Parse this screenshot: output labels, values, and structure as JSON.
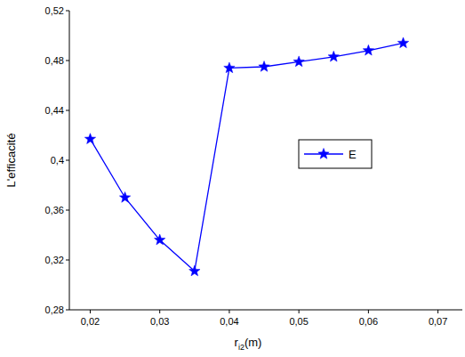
{
  "chart_data": {
    "type": "line",
    "x_label": "ri2(m)",
    "y_label": "L'efficacité",
    "x": [
      0.02,
      0.025,
      0.03,
      0.035,
      0.04,
      0.045,
      0.05,
      0.055,
      0.06,
      0.065
    ],
    "series": [
      {
        "name": "E",
        "color": "#0000ff",
        "marker": "star",
        "line_style": "solid",
        "values": [
          0.417,
          0.37,
          0.336,
          0.311,
          0.474,
          0.475,
          0.479,
          0.483,
          0.488,
          0.494
        ]
      }
    ],
    "xlim": [
      0.017,
      0.0735
    ],
    "xticks": [
      {
        "value": 0.02,
        "label": "0,02"
      },
      {
        "value": 0.03,
        "label": "0,03"
      },
      {
        "value": 0.04,
        "label": "0,04"
      },
      {
        "value": 0.05,
        "label": "0,05"
      },
      {
        "value": 0.06,
        "label": "0,06"
      },
      {
        "value": 0.07,
        "label": "0,07"
      }
    ],
    "ylim": [
      0.28,
      0.52
    ],
    "yticks": [
      {
        "value": 0.28,
        "label": "0,28"
      },
      {
        "value": 0.32,
        "label": "0,32"
      },
      {
        "value": 0.36,
        "label": "0,36"
      },
      {
        "value": 0.4,
        "label": "0,4"
      },
      {
        "value": 0.44,
        "label": "0,44"
      },
      {
        "value": 0.48,
        "label": "0,48"
      },
      {
        "value": 0.52,
        "label": "0,52"
      }
    ],
    "grid": false,
    "legend": "right"
  }
}
